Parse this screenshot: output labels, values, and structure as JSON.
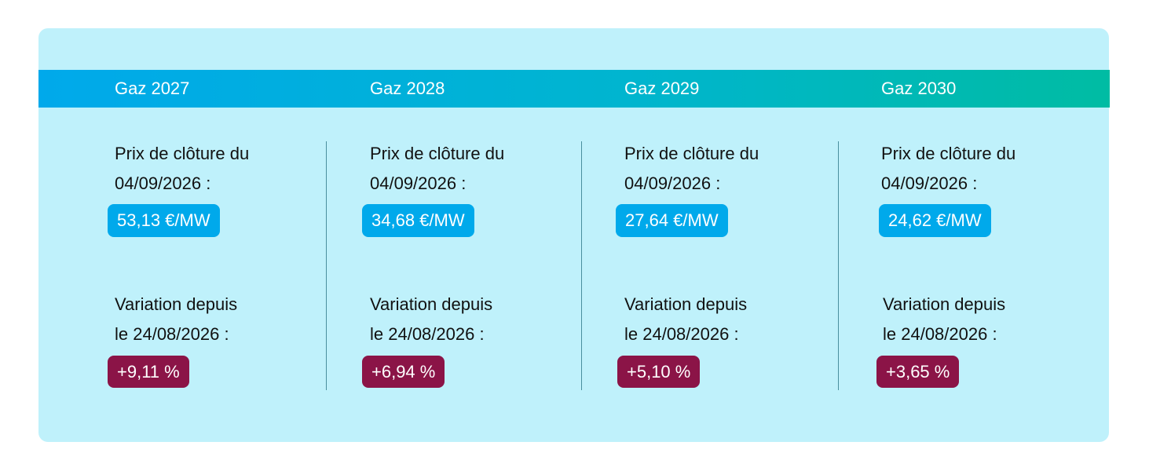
{
  "columns": [
    {
      "title": "Gaz 2027",
      "price_label_1": "Prix de clôture du",
      "price_label_2": "04/09/2026 :",
      "price_value": "53,13 €/MW",
      "variation_label_1": "Variation depuis",
      "variation_label_2": "le 24/08/2026 :",
      "variation_value": "+9,11 %"
    },
    {
      "title": "Gaz 2028",
      "price_label_1": "Prix de clôture du",
      "price_label_2": "04/09/2026 :",
      "price_value": "34,68 €/MW",
      "variation_label_1": "Variation depuis",
      "variation_label_2": "le 24/08/2026 :",
      "variation_value": "+6,94 %"
    },
    {
      "title": "Gaz 2029",
      "price_label_1": "Prix de clôture du",
      "price_label_2": "04/09/2026 :",
      "price_value": "27,64 €/MW",
      "variation_label_1": "Variation depuis",
      "variation_label_2": "le 24/08/2026 :",
      "variation_value": "+5,10 %"
    },
    {
      "title": "Gaz 2030",
      "price_label_1": "Prix de clôture du",
      "price_label_2": "04/09/2026 :",
      "price_value": "24,62 €/MW",
      "variation_label_1": "Variation depuis",
      "variation_label_2": "le 24/08/2026 :",
      "variation_value": "+3,65 %"
    }
  ],
  "colors": {
    "card_background": "#bff1fb",
    "header_gradient_start": "#00a9eb",
    "header_gradient_end": "#00bca3",
    "price_badge": "#00a9eb",
    "variation_badge": "#8b1447",
    "divider": "#4a8f9e"
  }
}
